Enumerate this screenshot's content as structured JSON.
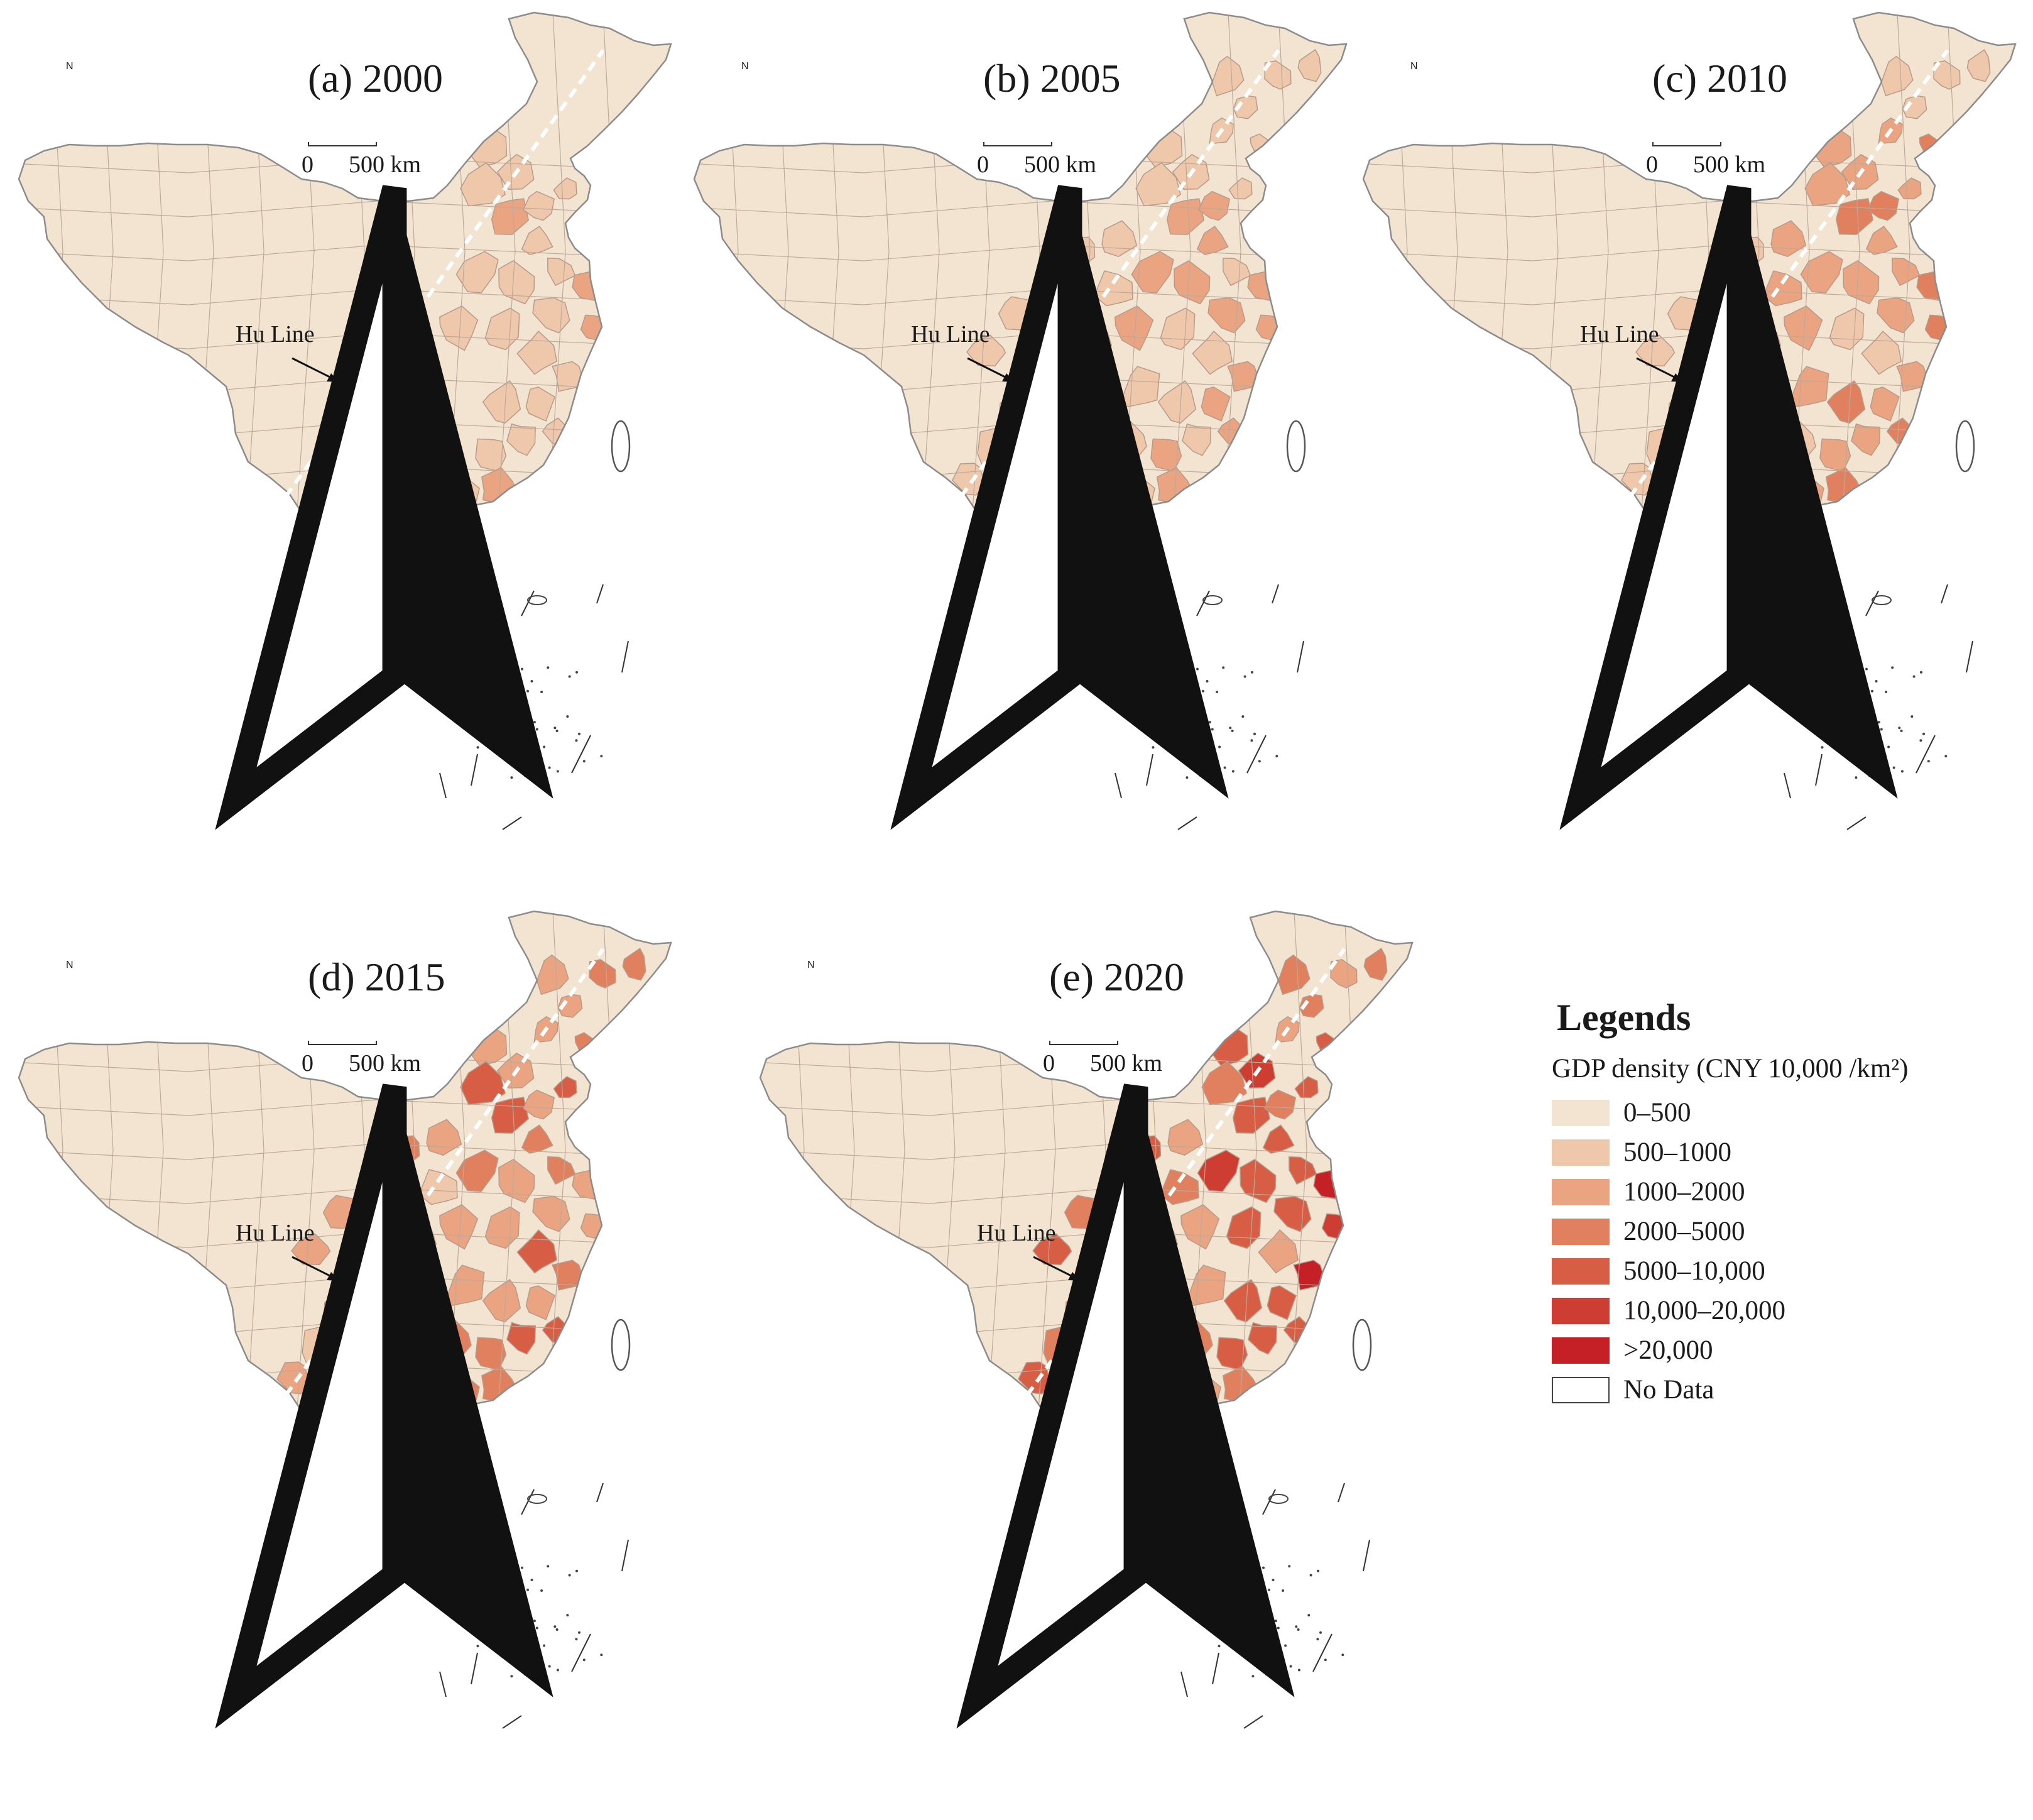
{
  "figure": {
    "panels": [
      {
        "title": "(a) 2000",
        "year": 2000,
        "level": 1
      },
      {
        "title": "(b) 2005",
        "year": 2005,
        "level": 2
      },
      {
        "title": "(c) 2010",
        "year": 2010,
        "level": 3
      },
      {
        "title": "(d) 2015",
        "year": 2015,
        "level": 4
      },
      {
        "title": "(e) 2020",
        "year": 2020,
        "level": 5
      }
    ],
    "north_label": "N",
    "scale_zero": "0",
    "scale_label": "500 km",
    "hu_line_label": "Hu Line"
  },
  "legend": {
    "title": "Legends",
    "subtitle": "GDP density (CNY 10,000 /km²)",
    "items": [
      {
        "label": "0–500",
        "color": "#f3e4d2"
      },
      {
        "label": "500–1000",
        "color": "#efc7ab"
      },
      {
        "label": "1000–2000",
        "color": "#eaa482"
      },
      {
        "label": "2000–5000",
        "color": "#e0805f"
      },
      {
        "label": "5000–10,000",
        "color": "#d75d45"
      },
      {
        "label": "10,000–20,000",
        "color": "#cd3d31"
      },
      {
        "label": ">20,000",
        "color": "#c42026"
      },
      {
        "label": "No Data",
        "color": "#ffffff"
      }
    ]
  }
}
